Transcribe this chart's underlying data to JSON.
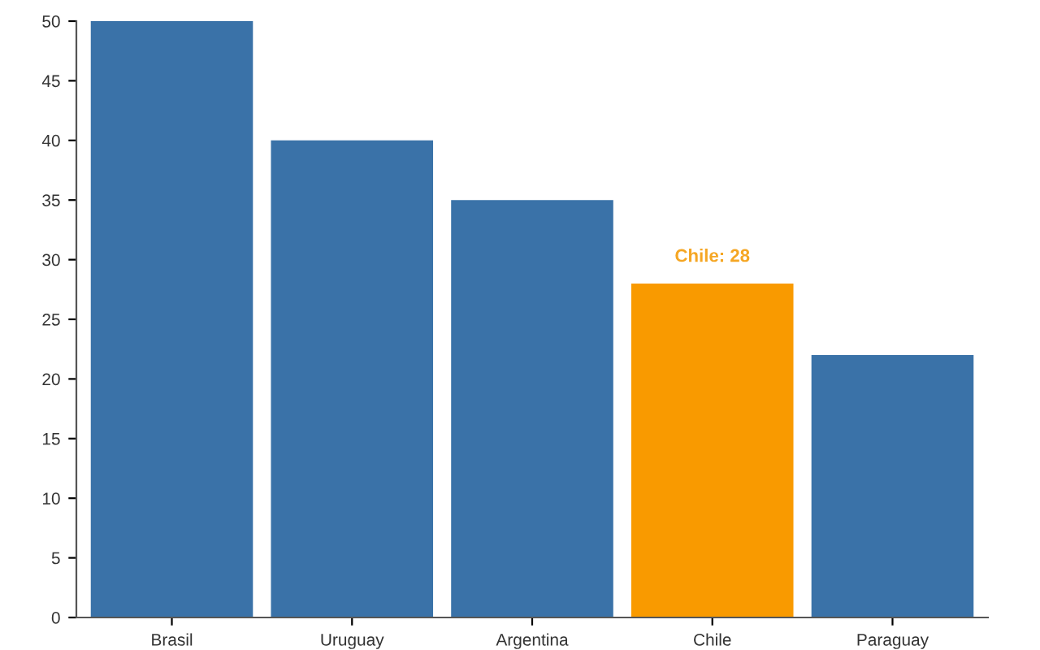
{
  "chart_data": {
    "type": "bar",
    "categories": [
      "Brasil",
      "Uruguay",
      "Argentina",
      "Chile",
      "Paraguay"
    ],
    "values": [
      50,
      40,
      35,
      28,
      22
    ],
    "colors": [
      "#3a72a8",
      "#3a72a8",
      "#3a72a8",
      "#f99a00",
      "#3a72a8"
    ],
    "ylim": [
      0,
      50
    ],
    "yticks": [
      0,
      5,
      10,
      15,
      20,
      25,
      30,
      35,
      40,
      45,
      50
    ],
    "grid": false,
    "annotations": [
      {
        "text": "Chile: 28",
        "x": "Chile",
        "y": 28
      }
    ]
  }
}
